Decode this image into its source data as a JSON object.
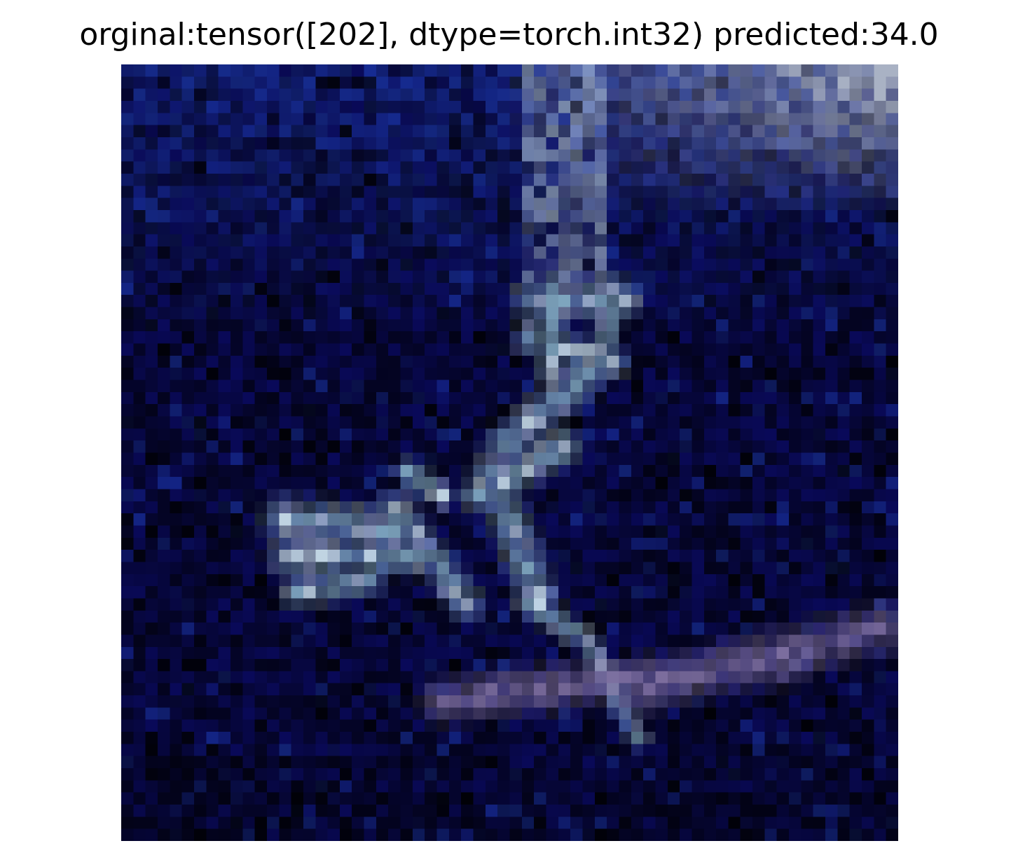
{
  "figure": {
    "title": "orginal:tensor([202], dtype=torch.int32) predicted:34.0"
  },
  "image": {
    "subject": "low-resolution satellite image",
    "palette": {
      "background": "#03031c",
      "deep_blue": "#0a0a60",
      "mid_blue": "#18309a",
      "cyan_gray": "#7fa6bf",
      "light_cyan": "#c6dbe8",
      "lavender": "#7e6fa0",
      "gray_white": "#a9b2c4"
    }
  }
}
